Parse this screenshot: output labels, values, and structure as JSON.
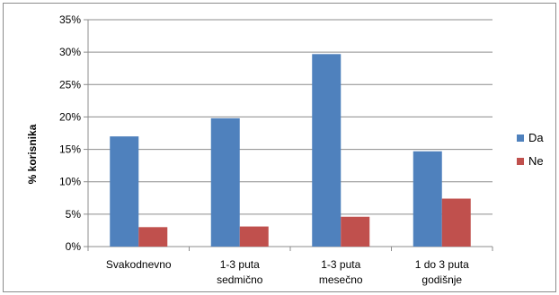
{
  "chart_data": {
    "type": "bar",
    "ylabel": "% korisnika",
    "xlabel": "",
    "ylim": [
      0,
      35
    ],
    "yticks": [
      "0%",
      "5%",
      "10%",
      "15%",
      "20%",
      "25%",
      "30%",
      "35%"
    ],
    "categories": [
      [
        "Svakodnevno"
      ],
      [
        "1-3  puta",
        "sedmično"
      ],
      [
        "1-3  puta",
        "mesečno"
      ],
      [
        "1 do 3 puta",
        "godišnje"
      ]
    ],
    "series": [
      {
        "name": "Da",
        "values": [
          17,
          19.8,
          29.7,
          14.7
        ]
      },
      {
        "name": "Ne",
        "values": [
          3,
          3.1,
          4.6,
          7.4
        ]
      }
    ],
    "grid": true,
    "legend_position": "right",
    "colors": {
      "Da": "#4f81bd",
      "Ne": "#c0504d",
      "grid": "#8c8c8c"
    }
  }
}
